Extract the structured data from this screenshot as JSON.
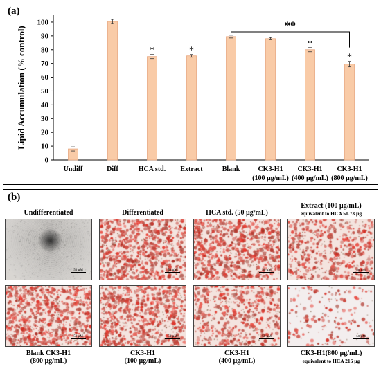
{
  "panel_a": {
    "letter": "(a)",
    "chart_data": {
      "type": "bar",
      "ylabel": "Lipid Accumulation (% control)",
      "ylim": [
        0,
        105
      ],
      "yticks": [
        0,
        10,
        20,
        30,
        40,
        50,
        60,
        70,
        80,
        90,
        100
      ],
      "categories": [
        {
          "line1": "Undiff",
          "line2": ""
        },
        {
          "line1": "Diff",
          "line2": ""
        },
        {
          "line1": "HCA std.",
          "line2": ""
        },
        {
          "line1": "Extract",
          "line2": ""
        },
        {
          "line1": "Blank",
          "line2": ""
        },
        {
          "line1": "CK3-H1",
          "line2": "(100 µg/mL)"
        },
        {
          "line1": "CK3-H1",
          "line2": "(400 µg/mL)"
        },
        {
          "line1": "CK3-H1",
          "line2": "(800 µg/mL)"
        }
      ],
      "values": [
        8,
        100.5,
        75,
        75.5,
        89.5,
        88,
        80,
        69.5
      ],
      "errors": [
        1.5,
        1.5,
        1.5,
        1,
        1,
        0.8,
        1.5,
        2
      ],
      "markers": [
        "",
        "",
        "*",
        "*",
        "",
        "",
        "*",
        "*"
      ],
      "bracket": {
        "from_index": 4,
        "to_index": 7,
        "label": "**"
      },
      "bar_color": "#f9cba7",
      "bar_edge": "#e8a77f",
      "grid": false
    }
  },
  "panel_b": {
    "letter": "(b)",
    "top_row": [
      {
        "title": "Undifferentiated",
        "subtitle": "",
        "scale": "50 µM",
        "style": "undiff"
      },
      {
        "title": "Differentiated",
        "subtitle": "",
        "scale": "50 µM",
        "style": "dense"
      },
      {
        "title": "HCA std. (50 µg/mL)",
        "subtitle": "",
        "scale": "50 µM",
        "style": "dense"
      },
      {
        "title": "Extract (100 µg/mL)",
        "subtitle": "equivalent to HCA 51.73 µg",
        "scale": "50 µM",
        "style": "medium"
      }
    ],
    "bottom_row": [
      {
        "title": "Blank CK3-H1",
        "subtitle": "(800 µg/mL)",
        "scale": "50 µM",
        "style": "dense"
      },
      {
        "title": "CK3-H1",
        "subtitle": "(100 µg/mL)",
        "scale": "50 µM",
        "style": "dense"
      },
      {
        "title": "CK3-H1",
        "subtitle": "(400 µg/mL)",
        "scale": "50 µM",
        "style": "medium"
      },
      {
        "title": "CK3-H1(800 µg/mL)",
        "subtitle": "equivalent to HCA 216 µg",
        "scale": "50 µM",
        "style": "sparse"
      }
    ]
  }
}
